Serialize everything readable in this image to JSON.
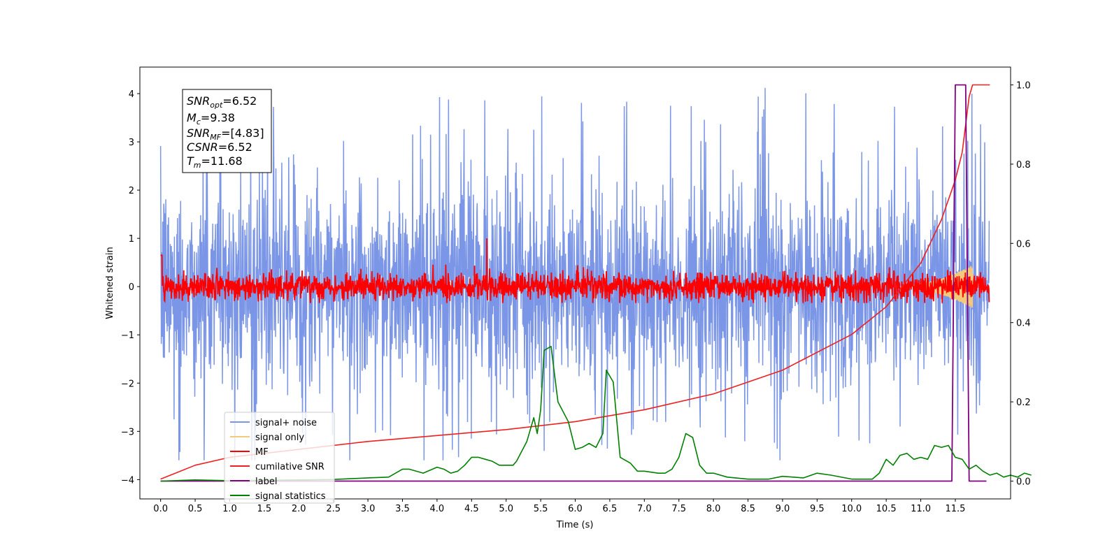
{
  "chart_data": {
    "type": "line",
    "xlabel": "Time (s)",
    "ylabel": "Whitened strain",
    "x_ticks": [
      "0.0",
      "0.5",
      "1.0",
      "1.5",
      "2.0",
      "2.5",
      "3.0",
      "3.5",
      "4.0",
      "4.5",
      "5.0",
      "5.5",
      "6.0",
      "6.5",
      "7.0",
      "7.5",
      "8.0",
      "8.5",
      "9.0",
      "9.5",
      "10.0",
      "10.5",
      "11.0",
      "11.5"
    ],
    "y_ticks_left": [
      "−4",
      "−3",
      "−2",
      "−1",
      "0",
      "1",
      "2",
      "3",
      "4"
    ],
    "y_ticks_right": [
      "0.0",
      "0.2",
      "0.4",
      "0.6",
      "0.8",
      "1.0"
    ],
    "xlim": [
      -0.3,
      12.3
    ],
    "ylim_left": [
      -4.4,
      4.55
    ],
    "ylim_right": [
      -0.045,
      1.045
    ],
    "time_span": [
      0,
      11.99
    ],
    "annotation": {
      "snr_opt": {
        "base": "SNR",
        "sub": "opt",
        "value": "=6.52"
      },
      "mc": {
        "base": "M",
        "sub": "c",
        "value": "=9.38"
      },
      "snr_mf": {
        "base": "SNR",
        "sub": "MF",
        "value": "=[4.83]"
      },
      "csnr": {
        "base": "CSNR",
        "value": "=6.52"
      },
      "tm": {
        "base": "T",
        "sub": "m",
        "value": "=11.68"
      }
    },
    "legend_position": "lower-left",
    "series": [
      {
        "name": "signal+ noise",
        "color": "#7b96e6",
        "axis": "left",
        "description": "noisy whitened strain, amplitude about ±2.5 with spikes to ±4"
      },
      {
        "name": "signal only",
        "color": "#f5c97a",
        "axis": "left",
        "description": "chirp signal growing near 11-11.7 s"
      },
      {
        "name": "MF",
        "color": "#ff0000",
        "axis": "left",
        "description": "matched filter output, about ±0.3, peak 1.0 near 4.7 s"
      },
      {
        "name": "cumilative SNR",
        "color": "#ee2020",
        "axis": "right",
        "points": [
          [
            0.0,
            0.005
          ],
          [
            0.5,
            0.04
          ],
          [
            1.0,
            0.06
          ],
          [
            2.0,
            0.08
          ],
          [
            3.0,
            0.1
          ],
          [
            4.0,
            0.115
          ],
          [
            5.0,
            0.13
          ],
          [
            6.0,
            0.15
          ],
          [
            7.0,
            0.18
          ],
          [
            8.0,
            0.22
          ],
          [
            9.0,
            0.28
          ],
          [
            10.0,
            0.37
          ],
          [
            10.5,
            0.44
          ],
          [
            11.0,
            0.55
          ],
          [
            11.3,
            0.66
          ],
          [
            11.5,
            0.76
          ],
          [
            11.6,
            0.83
          ],
          [
            11.7,
            0.97
          ],
          [
            11.75,
            1.0
          ],
          [
            12.0,
            1.0
          ]
        ]
      },
      {
        "name": "label",
        "color": "#800080",
        "axis": "right",
        "points": [
          [
            0.0,
            0.0
          ],
          [
            11.45,
            0.0
          ],
          [
            11.5,
            1.0
          ],
          [
            11.65,
            1.0
          ],
          [
            11.7,
            0.0
          ],
          [
            11.95,
            0.0
          ]
        ]
      },
      {
        "name": "signal statistics",
        "color": "#008000",
        "axis": "right",
        "points": [
          [
            0.0,
            0.0
          ],
          [
            0.5,
            0.003
          ],
          [
            1.0,
            0.001
          ],
          [
            1.5,
            0.002
          ],
          [
            2.0,
            0.003
          ],
          [
            2.5,
            0.004
          ],
          [
            3.0,
            0.008
          ],
          [
            3.3,
            0.01
          ],
          [
            3.5,
            0.03
          ],
          [
            3.6,
            0.03
          ],
          [
            3.8,
            0.02
          ],
          [
            4.0,
            0.035
          ],
          [
            4.1,
            0.03
          ],
          [
            4.2,
            0.02
          ],
          [
            4.3,
            0.025
          ],
          [
            4.4,
            0.04
          ],
          [
            4.5,
            0.06
          ],
          [
            4.6,
            0.06
          ],
          [
            4.7,
            0.055
          ],
          [
            4.8,
            0.05
          ],
          [
            4.9,
            0.04
          ],
          [
            5.0,
            0.04
          ],
          [
            5.1,
            0.04
          ],
          [
            5.15,
            0.05
          ],
          [
            5.3,
            0.1
          ],
          [
            5.4,
            0.16
          ],
          [
            5.45,
            0.12
          ],
          [
            5.5,
            0.18
          ],
          [
            5.55,
            0.33
          ],
          [
            5.65,
            0.34
          ],
          [
            5.75,
            0.2
          ],
          [
            5.9,
            0.15
          ],
          [
            6.0,
            0.08
          ],
          [
            6.1,
            0.085
          ],
          [
            6.2,
            0.095
          ],
          [
            6.3,
            0.085
          ],
          [
            6.4,
            0.12
          ],
          [
            6.45,
            0.28
          ],
          [
            6.55,
            0.25
          ],
          [
            6.65,
            0.06
          ],
          [
            6.8,
            0.045
          ],
          [
            6.9,
            0.025
          ],
          [
            7.0,
            0.025
          ],
          [
            7.2,
            0.02
          ],
          [
            7.3,
            0.02
          ],
          [
            7.4,
            0.03
          ],
          [
            7.5,
            0.06
          ],
          [
            7.6,
            0.12
          ],
          [
            7.7,
            0.11
          ],
          [
            7.8,
            0.04
          ],
          [
            7.9,
            0.02
          ],
          [
            8.0,
            0.02
          ],
          [
            8.2,
            0.01
          ],
          [
            8.5,
            0.005
          ],
          [
            8.8,
            0.005
          ],
          [
            9.0,
            0.012
          ],
          [
            9.3,
            0.008
          ],
          [
            9.5,
            0.02
          ],
          [
            9.7,
            0.015
          ],
          [
            10.0,
            0.005
          ],
          [
            10.3,
            0.005
          ],
          [
            10.4,
            0.02
          ],
          [
            10.5,
            0.055
          ],
          [
            10.6,
            0.04
          ],
          [
            10.7,
            0.065
          ],
          [
            10.8,
            0.07
          ],
          [
            10.9,
            0.055
          ],
          [
            11.0,
            0.06
          ],
          [
            11.1,
            0.055
          ],
          [
            11.2,
            0.09
          ],
          [
            11.3,
            0.085
          ],
          [
            11.4,
            0.09
          ],
          [
            11.5,
            0.06
          ],
          [
            11.6,
            0.055
          ],
          [
            11.7,
            0.03
          ],
          [
            11.8,
            0.04
          ],
          [
            11.9,
            0.025
          ],
          [
            12.0,
            0.015
          ],
          [
            12.1,
            0.02
          ],
          [
            12.2,
            0.01
          ],
          [
            12.3,
            0.015
          ],
          [
            12.4,
            0.01
          ],
          [
            12.5,
            0.02
          ],
          [
            12.6,
            0.015
          ]
        ]
      }
    ]
  }
}
